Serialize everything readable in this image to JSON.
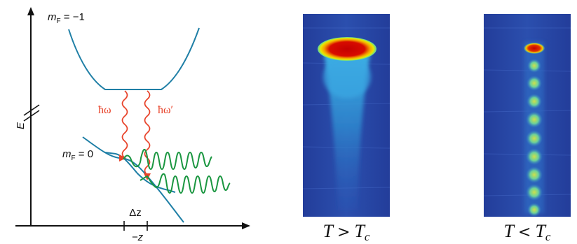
{
  "diagram": {
    "axis_y_label": "E",
    "axis_x_label": "−z",
    "delta_label": "Δz",
    "upper_state": {
      "prefix": "m",
      "sub": "F",
      "value": " = −1"
    },
    "lower_state": {
      "prefix": "m",
      "sub": "F",
      "value": " = 0"
    },
    "photon_1": "ħω",
    "photon_2": "ħω′",
    "colors": {
      "potential": "#1f7fa6",
      "photon": "#e8432a",
      "wave": "#1a9640",
      "axis": "#111111"
    }
  },
  "images": [
    {
      "name": "cloud-above-tc",
      "caption_var": "T",
      "caption_rel": ">",
      "caption_base": "T",
      "caption_sub": "c"
    },
    {
      "name": "cloud-below-tc",
      "caption_var": "T",
      "caption_rel": "<",
      "caption_base": "T",
      "caption_sub": "c"
    }
  ]
}
